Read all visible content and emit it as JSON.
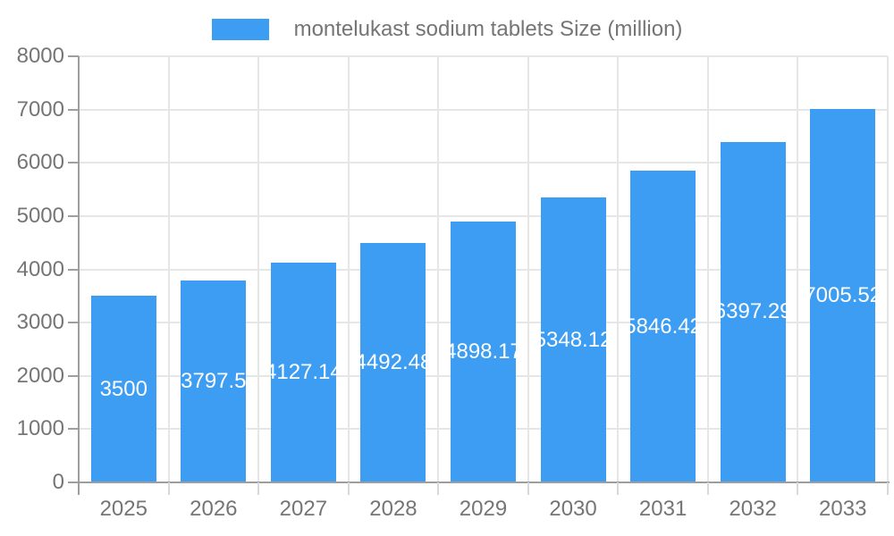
{
  "legend": {
    "label": "montelukast sodium tablets Size (million)"
  },
  "colors": {
    "bar": "#3d9df3",
    "grid": "#e6e6e6",
    "axis": "#9e9e9e",
    "xtick": "#d9d9d9",
    "text": "#757575",
    "bar_label": "#ffffff",
    "background": "#ffffff"
  },
  "chart_data": {
    "type": "bar",
    "title": "montelukast sodium tablets Size (million)",
    "categories": [
      "2025",
      "2026",
      "2027",
      "2028",
      "2029",
      "2030",
      "2031",
      "2032",
      "2033"
    ],
    "values": [
      3500,
      3797.5,
      4127.14,
      4492.48,
      4898.17,
      5348.12,
      5846.42,
      6397.29,
      7005.52
    ],
    "bar_labels": [
      "3500",
      "3797.5",
      "4127.14",
      "4492.48",
      "4898.17",
      "5348.12",
      "5846.42",
      "6397.29",
      "7005.52"
    ],
    "xlabel": "",
    "ylabel": "",
    "ylim": [
      0,
      8000
    ],
    "yticks": [
      0,
      1000,
      2000,
      3000,
      4000,
      5000,
      6000,
      7000,
      8000
    ],
    "grid": true,
    "legend_position": "top-center",
    "bar_label_position": "inside-center",
    "bar_label_color": "#ffffff"
  }
}
